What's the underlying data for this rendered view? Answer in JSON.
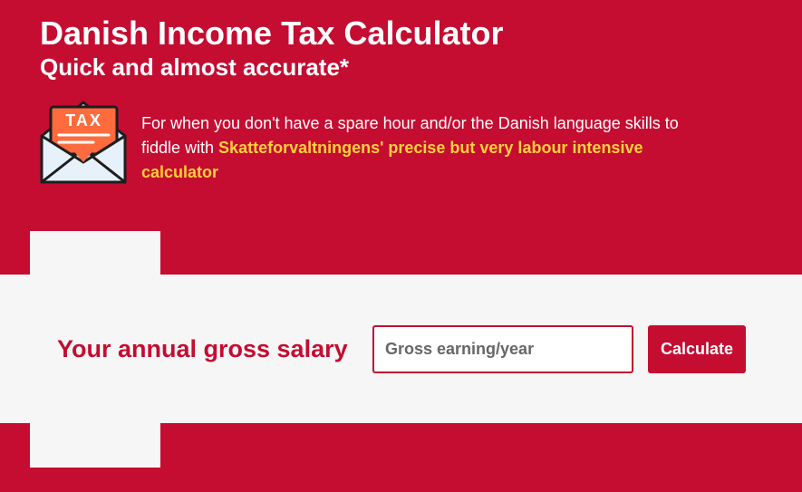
{
  "header": {
    "title": "Danish Income Tax Calculator",
    "subtitle": "Quick and almost accurate*"
  },
  "intro": {
    "icon": "tax-envelope-icon",
    "icon_text": "TAX",
    "text": "For when you don't have a spare hour and/or the Danish language skills to fiddle with ",
    "link_text": "Skatteforvaltningens' precise but very labour intensive calculator"
  },
  "form": {
    "label": "Your annual gross salary",
    "input_placeholder": "Gross earning/year",
    "input_value": "",
    "button_label": "Calculate"
  },
  "colors": {
    "brand_red": "#c50c31",
    "link_yellow": "#ffd23a",
    "band_light": "#f6f6f6"
  }
}
